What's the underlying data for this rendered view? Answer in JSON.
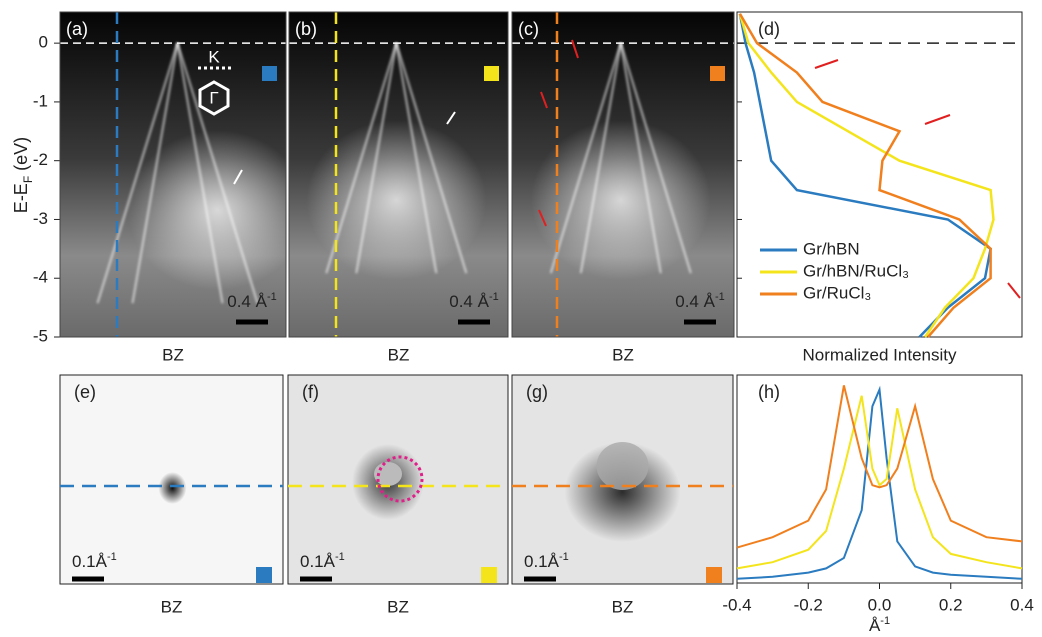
{
  "ylabel": "E-E",
  "ylabel_sub": "F",
  "ylabel_unit": " (eV)",
  "energy_axis": {
    "ylim": [
      -5,
      0.53
    ],
    "yticks": [
      0,
      -1,
      -2,
      -3,
      -4,
      -5
    ]
  },
  "inset": {
    "k": "K",
    "gamma": "Γ"
  },
  "arpes_panels": [
    {
      "label": "(a)",
      "xlabel": "BZ",
      "scale_bar": "0.4 Å",
      "scale_bar_sup": "-1",
      "color": "#2a7bbf"
    },
    {
      "label": "(b)",
      "xlabel": "BZ",
      "scale_bar": "0.4 Å",
      "scale_bar_sup": "-1",
      "color": "#f3e41c"
    },
    {
      "label": "(c)",
      "xlabel": "BZ",
      "scale_bar": "0.4 Å",
      "scale_bar_sup": "-1",
      "color": "#f07f1e"
    }
  ],
  "fermi_maps": [
    {
      "label": "(e)",
      "xlabel": "BZ",
      "scale_bar": "0.1Å",
      "scale_bar_sup": "-1",
      "color": "#2a7bbf"
    },
    {
      "label": "(f)",
      "xlabel": "BZ",
      "scale_bar": "0.1Å",
      "scale_bar_sup": "-1",
      "color": "#f3e41c"
    },
    {
      "label": "(g)",
      "xlabel": "BZ",
      "scale_bar": "0.1Å",
      "scale_bar_sup": "-1",
      "color": "#f07f1e"
    }
  ],
  "chart_data": [
    {
      "type": "line",
      "label": "(d)",
      "xlabel": "Normalized Intensity",
      "legend": "lower left",
      "energy": [
        0.5,
        0,
        -0.5,
        -1,
        -1.5,
        -2,
        -2.5,
        -3,
        -3.5,
        -4,
        -4.5,
        -5
      ],
      "xlim": [
        0,
        1
      ],
      "series": [
        {
          "name": "Gr/hBN",
          "color": "#2a7bbf",
          "values": [
            0.01,
            0.03,
            0.06,
            0.08,
            0.1,
            0.12,
            0.21,
            0.74,
            0.89,
            0.87,
            0.74,
            0.64
          ]
        },
        {
          "name": "Gr/hBN/RuCl₃",
          "color": "#f3e41c",
          "values": [
            0.01,
            0.04,
            0.12,
            0.21,
            0.39,
            0.57,
            0.89,
            0.9,
            0.87,
            0.83,
            0.73,
            0.66
          ]
        },
        {
          "name": "Gr/RuCl₃",
          "color": "#f07f1e",
          "values": [
            0.01,
            0.07,
            0.21,
            0.3,
            0.57,
            0.51,
            0.5,
            0.78,
            0.89,
            0.89,
            0.76,
            0.67
          ]
        }
      ]
    },
    {
      "type": "line",
      "label": "(h)",
      "xlabel": "Å",
      "xlabel_sup": "-1",
      "x": [
        -0.4,
        -0.3,
        -0.2,
        -0.15,
        -0.1,
        -0.05,
        -0.02,
        0,
        0.02,
        0.05,
        0.1,
        0.15,
        0.2,
        0.3,
        0.4
      ],
      "xlim": [
        -0.4,
        0.4
      ],
      "xticks": [
        -0.4,
        -0.2,
        {
          "value": 0,
          "label": "0.0"
        },
        0.2,
        0.4
      ],
      "ylim": [
        0,
        1
      ],
      "series": [
        {
          "name": "Gr/hBN",
          "color": "#2a7bbf",
          "values": [
            0.02,
            0.03,
            0.05,
            0.07,
            0.12,
            0.35,
            0.85,
            0.93,
            0.6,
            0.2,
            0.08,
            0.05,
            0.04,
            0.03,
            0.02
          ]
        },
        {
          "name": "Gr/hBN/RuCl₃",
          "color": "#f3e41c",
          "values": [
            0.07,
            0.1,
            0.16,
            0.25,
            0.55,
            0.9,
            0.55,
            0.47,
            0.5,
            0.84,
            0.45,
            0.22,
            0.14,
            0.1,
            0.07
          ]
        },
        {
          "name": "Gr/RuCl₃",
          "color": "#f07f1e",
          "values": [
            0.17,
            0.22,
            0.3,
            0.45,
            0.95,
            0.6,
            0.47,
            0.46,
            0.47,
            0.55,
            0.85,
            0.5,
            0.3,
            0.22,
            0.2
          ]
        }
      ]
    }
  ]
}
